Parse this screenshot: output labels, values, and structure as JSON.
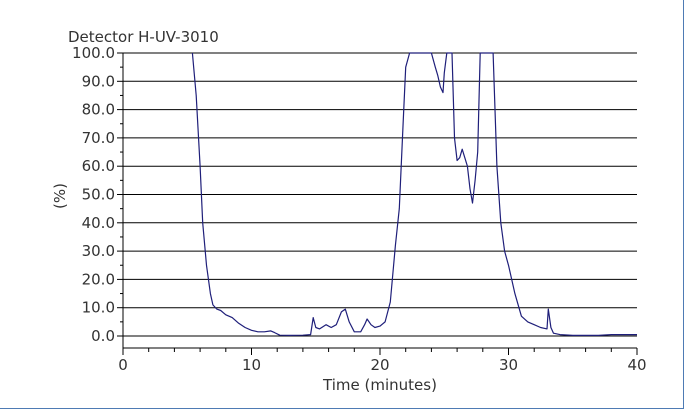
{
  "chart_data": {
    "type": "line",
    "title": "Detector H-UV-3010",
    "xlabel": "Time (minutes)",
    "ylabel": "(%)",
    "xlim": [
      0,
      40
    ],
    "ylim": [
      0,
      100
    ],
    "x_ticks": [
      0,
      10,
      20,
      30,
      40
    ],
    "x_tick_labels": [
      "0",
      "10",
      "20",
      "30",
      "40"
    ],
    "y_ticks": [
      0,
      10,
      20,
      30,
      40,
      50,
      60,
      70,
      80,
      90,
      100
    ],
    "y_tick_labels": [
      "0.0",
      "10.0",
      "20.0",
      "30.0",
      "40.0",
      "50.0",
      "60.0",
      "70.0",
      "80.0",
      "90.0",
      "100.0"
    ],
    "grid": "horizontal",
    "line_color": "#1f1f7a",
    "series": [
      {
        "name": "",
        "x": [
          5.4,
          5.7,
          6.0,
          6.2,
          6.5,
          6.8,
          7.0,
          7.3,
          7.6,
          8.0,
          8.5,
          9.0,
          9.5,
          10.0,
          10.5,
          11.0,
          11.5,
          11.8,
          12.2,
          13.0,
          14.0,
          14.6,
          14.8,
          15.0,
          15.3,
          15.8,
          16.2,
          16.6,
          17.0,
          17.3,
          17.6,
          18.0,
          18.5,
          18.8,
          19.0,
          19.3,
          19.6,
          20.0,
          20.4,
          20.8,
          21.2,
          21.5,
          21.8,
          22.0,
          22.3,
          22.6,
          23.0,
          23.5,
          24.0,
          24.3,
          24.5,
          24.7,
          24.9,
          25.0,
          25.2,
          25.4,
          25.6,
          25.8,
          26.0,
          26.2,
          26.4,
          26.6,
          26.8,
          27.0,
          27.2,
          27.4,
          27.6,
          27.8,
          27.95,
          28.05,
          28.2,
          28.5,
          28.8,
          29.1,
          29.4,
          29.7,
          30.0,
          30.5,
          31.0,
          31.5,
          32.0,
          32.5,
          33.0,
          33.1,
          33.3,
          33.5,
          34.0,
          35.0,
          36.0,
          37.0,
          38.0,
          39.0,
          40.0
        ],
        "y": [
          100,
          85,
          60,
          40,
          25,
          15,
          11,
          9.5,
          9,
          7.5,
          6.5,
          4.5,
          3,
          2,
          1.5,
          1.5,
          1.8,
          1.2,
          0.3,
          0.2,
          0.3,
          0.5,
          6.5,
          3,
          2.5,
          4,
          3,
          4,
          8.5,
          9.5,
          5,
          1.5,
          1.5,
          4,
          6,
          4,
          3,
          3.5,
          5,
          12,
          32,
          45,
          75,
          95,
          100,
          100,
          100,
          100,
          100,
          95,
          92,
          88,
          86,
          93,
          100,
          100,
          100,
          70,
          62,
          63,
          66,
          63,
          60,
          52,
          47,
          55,
          65,
          100,
          100,
          100,
          100,
          100,
          100,
          60,
          40,
          30,
          25,
          15,
          7,
          5,
          4,
          3,
          2.5,
          9.5,
          3,
          1,
          0.5,
          0.2,
          0.2,
          0.2,
          0.5,
          0.5,
          0.5
        ]
      }
    ]
  }
}
